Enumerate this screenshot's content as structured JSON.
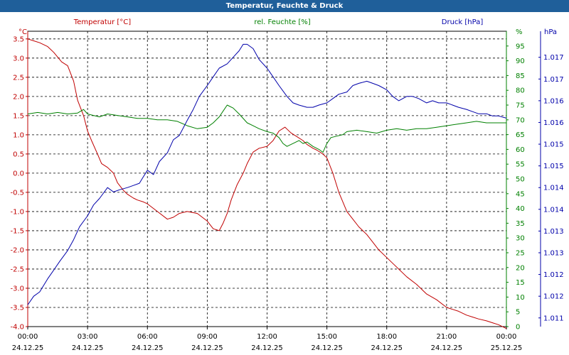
{
  "window": {
    "title": "Temperatur, Feuchte & Druck"
  },
  "colors": {
    "titlebar": "#1f5f9a",
    "temperature": "#c00000",
    "humidity": "#008000",
    "pressure": "#0000aa",
    "grid": "#000000"
  },
  "chart_data": {
    "type": "line",
    "title": "Temperatur, Feuchte & Druck",
    "grid": true,
    "x_ticks": [
      {
        "time": "00:00",
        "date": "24.12.25"
      },
      {
        "time": "03:00",
        "date": "24.12.25"
      },
      {
        "time": "06:00",
        "date": "24.12.25"
      },
      {
        "time": "09:00",
        "date": "24.12.25"
      },
      {
        "time": "12:00",
        "date": "24.12.25"
      },
      {
        "time": "15:00",
        "date": "24.12.25"
      },
      {
        "time": "18:00",
        "date": "24.12.25"
      },
      {
        "time": "21:00",
        "date": "24.12.25"
      },
      {
        "time": "00:00",
        "date": "25.12.25"
      }
    ],
    "x_range_hours": [
      0,
      24
    ],
    "axes": {
      "temperature": {
        "label": "Temperatur [°C]",
        "unit": "°C",
        "range": [
          -4.0,
          3.7
        ],
        "ticks": [
          "3.5",
          "3.0",
          "2.5",
          "2.0",
          "1.5",
          "1.0",
          "0.5",
          "0.0",
          "-0.5",
          "-1.0",
          "-1.5",
          "-2.0",
          "-2.5",
          "-3.0",
          "-3.5",
          "-4.0"
        ],
        "tick_values": [
          3.5,
          3.0,
          2.5,
          2.0,
          1.5,
          1.0,
          0.5,
          0.0,
          -0.5,
          -1.0,
          -1.5,
          -2.0,
          -2.5,
          -3.0,
          -3.5,
          -4.0
        ]
      },
      "humidity": {
        "label": "rel. Feuchte [%]",
        "unit": "%",
        "range": [
          0,
          100
        ],
        "ticks": [
          "95",
          "90",
          "85",
          "80",
          "75",
          "70",
          "65",
          "60",
          "55",
          "50",
          "45",
          "40",
          "35",
          "30",
          "25",
          "20",
          "15",
          "10",
          "5",
          "0"
        ],
        "tick_values": [
          95,
          90,
          85,
          80,
          75,
          70,
          65,
          60,
          55,
          50,
          45,
          40,
          35,
          30,
          25,
          20,
          15,
          10,
          5,
          0
        ]
      },
      "pressure": {
        "label": "Druck [hPa]",
        "unit": "hPa",
        "range": [
          1010.8,
          1017.6
        ],
        "ticks": [
          "1.017",
          "1.017",
          "1.016",
          "1.016",
          "1.015",
          "1.015",
          "1.014",
          "1.014",
          "1.013",
          "1.013",
          "1.012",
          "1.012",
          "1.011"
        ],
        "tick_values": [
          1017.0,
          1016.5,
          1016.0,
          1015.5,
          1015.0,
          1014.5,
          1014.0,
          1013.5,
          1013.0,
          1012.5,
          1012.0,
          1011.5,
          1011.0
        ]
      }
    },
    "series": [
      {
        "name": "Temperatur [°C]",
        "axis": "temperature",
        "color": "#c00000",
        "x": [
          0,
          0.3,
          0.6,
          1,
          1.3,
          1.7,
          2,
          2.3,
          2.5,
          2.8,
          3,
          3.2,
          3.5,
          3.7,
          4,
          4.3,
          4.5,
          4.8,
          5,
          5.3,
          5.5,
          5.8,
          6,
          6.5,
          7,
          7.3,
          7.6,
          8,
          8.5,
          9,
          9.3,
          9.6,
          9.8,
          10,
          10.2,
          10.5,
          10.8,
          11,
          11.3,
          11.6,
          12,
          12.3,
          12.6,
          12.9,
          13,
          13.2,
          13.5,
          13.8,
          14,
          14.3,
          14.5,
          14.8,
          15,
          15.3,
          15.6,
          16,
          16.3,
          16.6,
          17,
          17.3,
          17.6,
          18,
          18.5,
          19,
          19.5,
          20,
          20.5,
          21,
          21.3,
          21.6,
          22,
          22.3,
          22.6,
          23,
          23.3,
          23.6,
          24
        ],
        "values": [
          3.5,
          3.45,
          3.4,
          3.3,
          3.15,
          2.9,
          2.8,
          2.4,
          1.9,
          1.5,
          1.1,
          0.85,
          0.5,
          0.25,
          0.15,
          0.0,
          -0.25,
          -0.45,
          -0.55,
          -0.65,
          -0.7,
          -0.75,
          -0.8,
          -1.0,
          -1.2,
          -1.15,
          -1.05,
          -1.0,
          -1.05,
          -1.25,
          -1.45,
          -1.5,
          -1.3,
          -1.05,
          -0.7,
          -0.3,
          0.0,
          0.25,
          0.55,
          0.65,
          0.7,
          0.85,
          1.1,
          1.2,
          1.15,
          1.05,
          0.95,
          0.85,
          0.75,
          0.65,
          0.6,
          0.5,
          0.4,
          0.0,
          -0.5,
          -1.0,
          -1.2,
          -1.4,
          -1.6,
          -1.8,
          -2.0,
          -2.2,
          -2.45,
          -2.7,
          -2.9,
          -3.15,
          -3.3,
          -3.5,
          -3.55,
          -3.6,
          -3.7,
          -3.75,
          -3.8,
          -3.85,
          -3.9,
          -3.95,
          -4.05
        ]
      },
      {
        "name": "rel. Feuchte [%]",
        "axis": "humidity",
        "color": "#008000",
        "x": [
          0,
          0.5,
          1,
          1.5,
          2,
          2.5,
          2.8,
          3,
          3.3,
          3.6,
          4,
          4.5,
          5,
          5.5,
          6,
          6.5,
          7,
          7.5,
          8,
          8.5,
          9,
          9.3,
          9.6,
          9.8,
          10,
          10.3,
          10.6,
          11,
          11.3,
          11.6,
          12,
          12.3,
          12.6,
          12.8,
          13,
          13.3,
          13.6,
          13.8,
          14,
          14.3,
          14.6,
          14.8,
          15,
          15.2,
          15.5,
          15.8,
          16,
          16.5,
          17,
          17.5,
          18,
          18.5,
          19,
          19.5,
          20,
          20.5,
          21,
          21.5,
          22,
          22.5,
          23,
          23.5,
          24
        ],
        "values": [
          72,
          72.5,
          72,
          72.5,
          72,
          72.3,
          73.5,
          72,
          71.5,
          71,
          72,
          71.5,
          71,
          70.5,
          70.5,
          70,
          70,
          69.5,
          68,
          67,
          67.5,
          69,
          71,
          73,
          75,
          74,
          72,
          69,
          68,
          67,
          66,
          65.5,
          64,
          62,
          61,
          62,
          63,
          62,
          62.5,
          61,
          60,
          59,
          62,
          64,
          64.5,
          65,
          66,
          66.5,
          66,
          65.5,
          66.5,
          67,
          66.5,
          67,
          67,
          67.5,
          68,
          68.5,
          69,
          69.5,
          69,
          69,
          69
        ]
      },
      {
        "name": "Druck [hPa]",
        "axis": "pressure",
        "color": "#0000aa",
        "x": [
          0,
          0.3,
          0.6,
          1,
          1.3,
          1.6,
          2,
          2.3,
          2.6,
          3,
          3.3,
          3.6,
          4,
          4.3,
          4.6,
          5,
          5.3,
          5.6,
          5.8,
          6,
          6.3,
          6.6,
          7,
          7.3,
          7.6,
          8,
          8.3,
          8.6,
          9,
          9.3,
          9.6,
          10,
          10.3,
          10.6,
          10.8,
          11,
          11.3,
          11.6,
          12,
          12.3,
          12.6,
          13,
          13.3,
          13.6,
          14,
          14.3,
          14.6,
          15,
          15.3,
          15.6,
          16,
          16.3,
          16.6,
          17,
          17.3,
          17.6,
          18,
          18.3,
          18.6,
          19,
          19.3,
          19.6,
          20,
          20.3,
          20.6,
          21,
          21.3,
          21.6,
          22,
          22.3,
          22.6,
          23,
          23.3,
          23.6,
          24
        ],
        "values": [
          1011.3,
          1011.5,
          1011.6,
          1011.9,
          1012.1,
          1012.3,
          1012.55,
          1012.8,
          1013.1,
          1013.35,
          1013.6,
          1013.75,
          1014.0,
          1013.9,
          1013.95,
          1014.0,
          1014.05,
          1014.1,
          1014.25,
          1014.4,
          1014.3,
          1014.6,
          1014.8,
          1015.1,
          1015.2,
          1015.55,
          1015.8,
          1016.1,
          1016.35,
          1016.55,
          1016.75,
          1016.85,
          1017.0,
          1017.15,
          1017.3,
          1017.3,
          1017.2,
          1016.95,
          1016.75,
          1016.55,
          1016.35,
          1016.1,
          1015.95,
          1015.9,
          1015.85,
          1015.85,
          1015.9,
          1015.95,
          1016.05,
          1016.15,
          1016.2,
          1016.35,
          1016.4,
          1016.45,
          1016.4,
          1016.35,
          1016.25,
          1016.1,
          1016.0,
          1016.1,
          1016.1,
          1016.05,
          1015.95,
          1016.0,
          1015.95,
          1015.95,
          1015.9,
          1015.85,
          1015.8,
          1015.75,
          1015.7,
          1015.7,
          1015.65,
          1015.65,
          1015.6
        ]
      }
    ]
  }
}
